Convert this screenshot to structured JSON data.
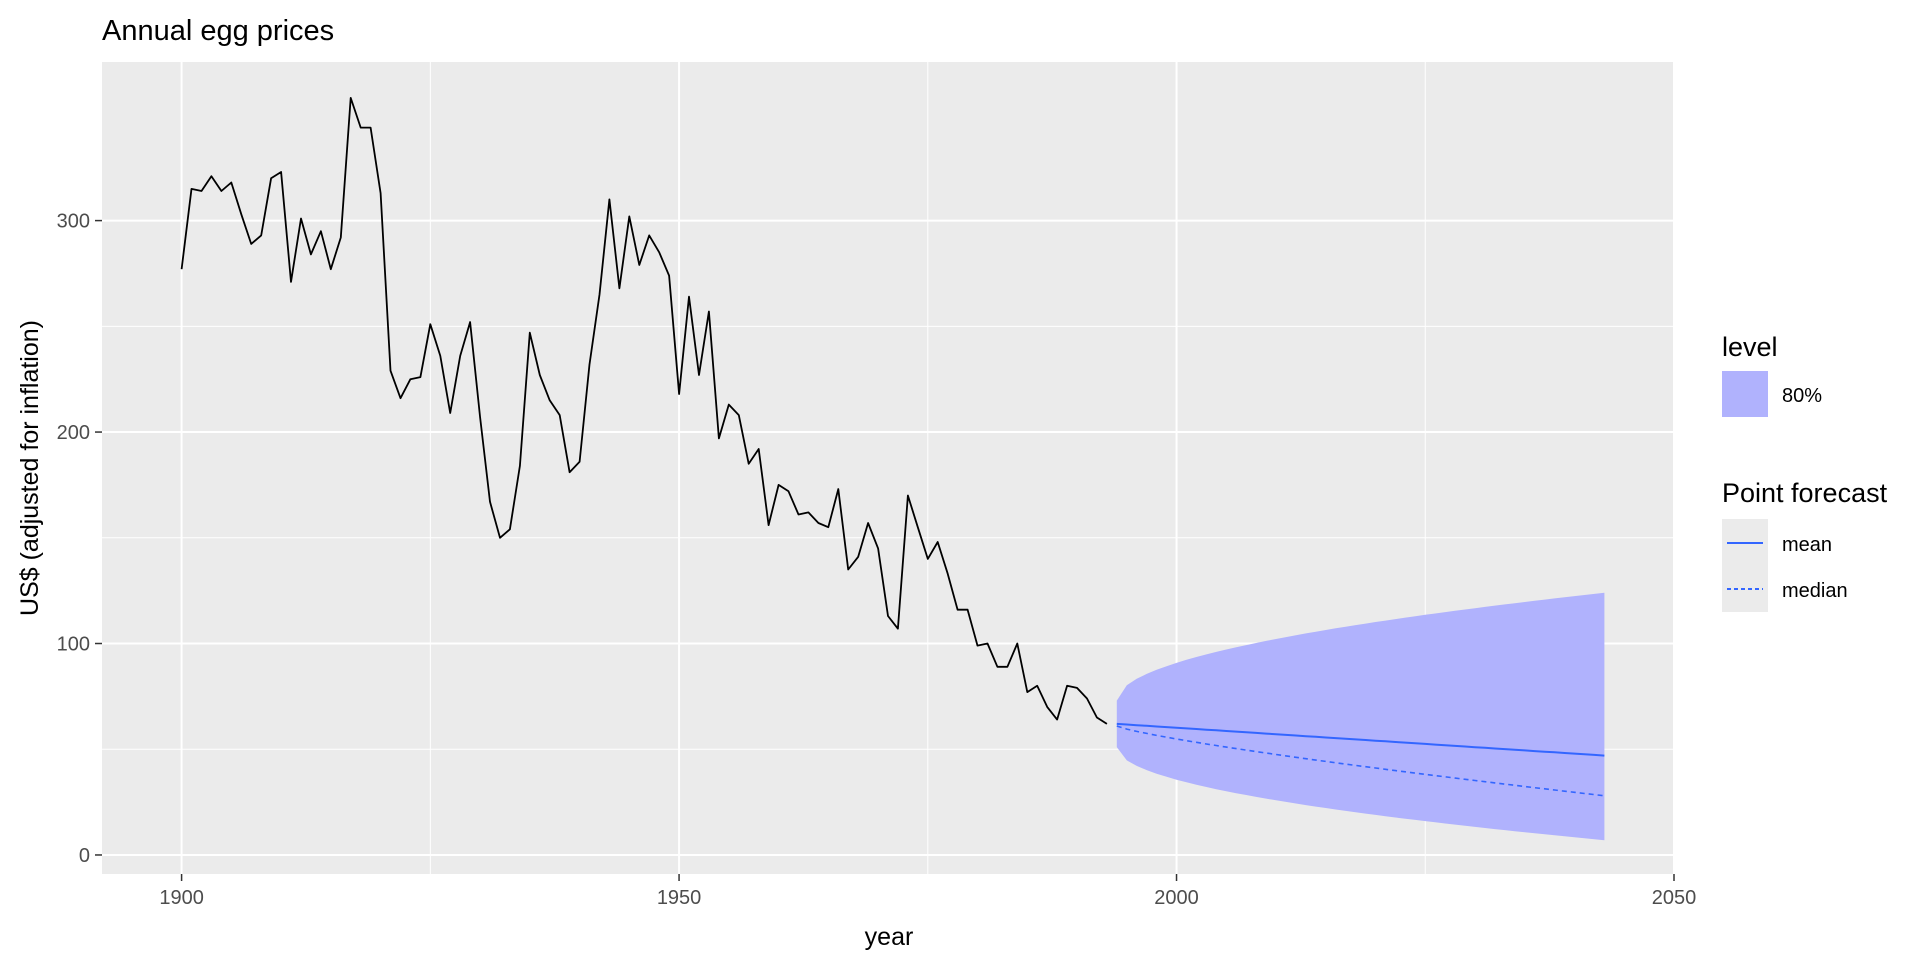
{
  "chart_data": {
    "type": "line",
    "title": "Annual egg prices",
    "xlabel": "year",
    "ylabel": "US$ (adjusted for inflation)",
    "xlim": [
      1892,
      2050
    ],
    "ylim": [
      -9,
      375
    ],
    "x_ticks": [
      1900,
      1950,
      2000,
      2050
    ],
    "x_tick_labels": [
      "1900",
      "1950",
      "2000",
      "2050"
    ],
    "y_ticks": [
      0,
      100,
      200,
      300
    ],
    "y_tick_labels": [
      "0",
      "100",
      "200",
      "300"
    ],
    "grid": true,
    "legend_placement": "right",
    "colors": {
      "panel": "#ebebeb",
      "grid": "#ffffff",
      "history": "#000000",
      "forecast": "#3366ff",
      "interval": "#b0b2fd"
    },
    "history": {
      "x": [
        1900,
        1901,
        1902,
        1903,
        1904,
        1905,
        1906,
        1907,
        1908,
        1909,
        1910,
        1911,
        1912,
        1913,
        1914,
        1915,
        1916,
        1917,
        1918,
        1919,
        1920,
        1921,
        1922,
        1923,
        1924,
        1925,
        1926,
        1927,
        1928,
        1929,
        1930,
        1931,
        1932,
        1933,
        1934,
        1935,
        1936,
        1937,
        1938,
        1939,
        1940,
        1941,
        1942,
        1943,
        1944,
        1945,
        1946,
        1947,
        1948,
        1949,
        1950,
        1951,
        1952,
        1953,
        1954,
        1955,
        1956,
        1957,
        1958,
        1959,
        1960,
        1961,
        1962,
        1963,
        1964,
        1965,
        1966,
        1967,
        1968,
        1969,
        1970,
        1971,
        1972,
        1973,
        1974,
        1975,
        1976,
        1977,
        1978,
        1979,
        1980,
        1981,
        1982,
        1983,
        1984,
        1985,
        1986,
        1987,
        1988,
        1989,
        1990,
        1991,
        1992,
        1993
      ],
      "values": [
        277,
        315,
        314,
        321,
        314,
        318,
        303,
        289,
        293,
        320,
        323,
        271,
        301,
        284,
        295,
        277,
        292,
        358,
        344,
        344,
        313,
        229,
        216,
        225,
        226,
        251,
        236,
        209,
        236,
        252,
        207,
        167,
        150,
        154,
        184,
        247,
        227,
        215,
        208,
        181,
        186,
        232,
        265,
        310,
        268,
        302,
        279,
        293,
        285,
        274,
        218,
        264,
        227,
        257,
        197,
        213,
        208,
        185,
        192,
        156,
        175,
        172,
        161,
        162,
        157,
        155,
        173,
        135,
        141,
        157,
        145,
        113,
        107,
        170,
        155,
        140,
        148,
        133,
        116,
        116,
        99,
        100,
        89,
        89,
        100,
        77,
        80,
        70,
        64,
        80,
        79,
        74,
        65,
        62
      ]
    },
    "forecast": {
      "x": [
        1994,
        2043
      ],
      "mean": [
        62,
        47
      ],
      "median": [
        61,
        28
      ],
      "lower_80": [
        51,
        7
      ],
      "upper_80": [
        73,
        124
      ]
    },
    "legend": {
      "level_title": "level",
      "level_items": [
        {
          "label": "80%"
        }
      ],
      "point_title": "Point forecast",
      "point_items": [
        {
          "label": "mean",
          "style": "solid"
        },
        {
          "label": "median",
          "style": "dashed"
        }
      ]
    }
  }
}
